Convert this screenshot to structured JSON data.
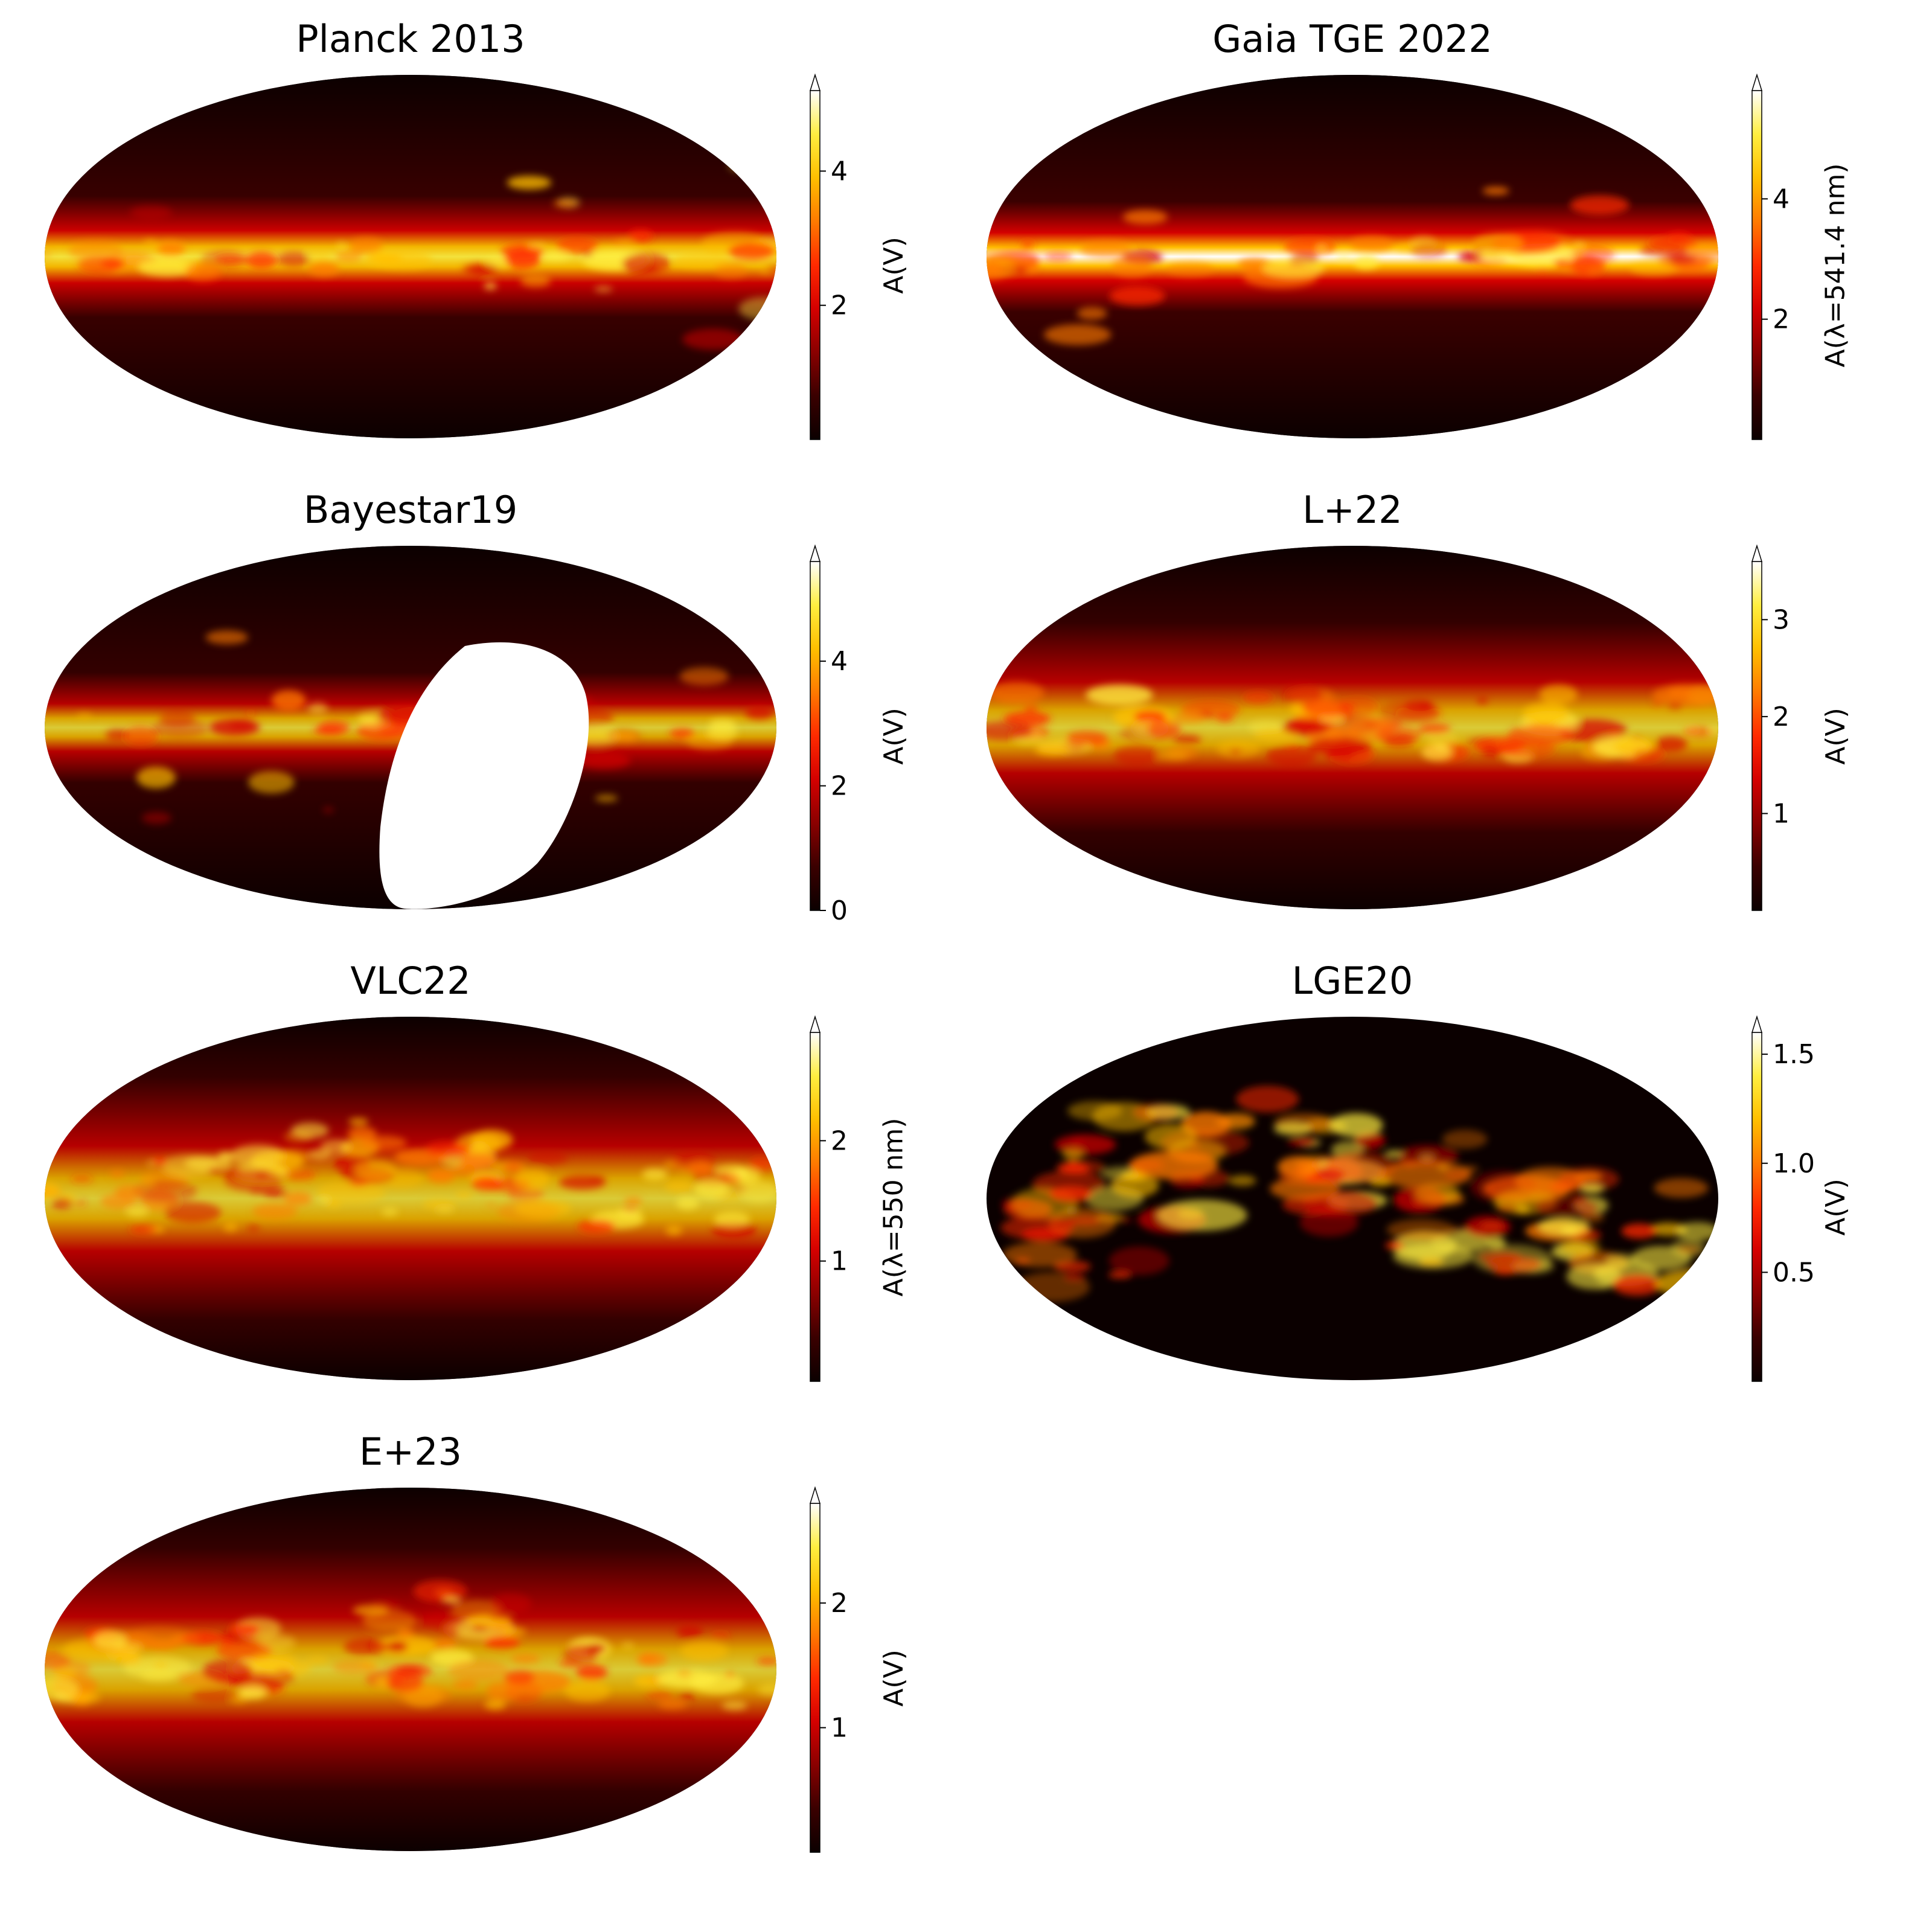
{
  "colormap": {
    "name": "hot",
    "stops": [
      "#0b0000",
      "#3a0000",
      "#8a0000",
      "#d40000",
      "#ff2a00",
      "#ff7a00",
      "#ffbf00",
      "#ffee40",
      "#ffffff"
    ],
    "mask_color": "#ffffff"
  },
  "chart_data": [
    {
      "type": "heatmap",
      "title": "Planck 2013",
      "projection": "Mollweide all-sky",
      "colorbar": {
        "label": "A(V)",
        "vmin": 0,
        "vmax": 5.2,
        "ticks": [
          2,
          4
        ],
        "tick_labels": [
          "2",
          "4"
        ],
        "extend": "max"
      }
    },
    {
      "type": "heatmap",
      "title": "Gaia TGE 2022",
      "projection": "Mollweide all-sky",
      "colorbar": {
        "label": "A(λ=541.4 nm)",
        "vmin": 0,
        "vmax": 5.8,
        "ticks": [
          2,
          4
        ],
        "tick_labels": [
          "2",
          "4"
        ],
        "extend": "max"
      }
    },
    {
      "type": "heatmap",
      "title": "Bayestar19",
      "projection": "Mollweide all-sky",
      "masked_region": "southern sky not covered",
      "colorbar": {
        "label": "A(V)",
        "vmin": 0,
        "vmax": 5.6,
        "ticks": [
          0,
          2,
          4
        ],
        "tick_labels": [
          "0",
          "2",
          "4"
        ],
        "extend": "max"
      }
    },
    {
      "type": "heatmap",
      "title": "L+22",
      "projection": "Mollweide all-sky",
      "colorbar": {
        "label": "A(V)",
        "vmin": 0,
        "vmax": 3.6,
        "ticks": [
          1,
          2,
          3
        ],
        "tick_labels": [
          "1",
          "2",
          "3"
        ],
        "extend": "max"
      }
    },
    {
      "type": "heatmap",
      "title": "VLC22",
      "projection": "Mollweide all-sky",
      "colorbar": {
        "label": "A(λ=550 nm)",
        "vmin": 0,
        "vmax": 2.9,
        "ticks": [
          1,
          2
        ],
        "tick_labels": [
          "1",
          "2"
        ],
        "extend": "max"
      }
    },
    {
      "type": "heatmap",
      "title": "LGE20",
      "projection": "Mollweide all-sky",
      "colorbar": {
        "label": "A(V)",
        "vmin": 0,
        "vmax": 1.6,
        "ticks": [
          0.5,
          1.0,
          1.5
        ],
        "tick_labels": [
          "0.5",
          "1.0",
          "1.5"
        ],
        "extend": "max"
      }
    },
    {
      "type": "heatmap",
      "title": "E+23",
      "projection": "Mollweide all-sky",
      "colorbar": {
        "label": "A(V)",
        "vmin": 0,
        "vmax": 2.8,
        "ticks": [
          1,
          2
        ],
        "tick_labels": [
          "1",
          "2"
        ],
        "extend": "max"
      }
    }
  ]
}
